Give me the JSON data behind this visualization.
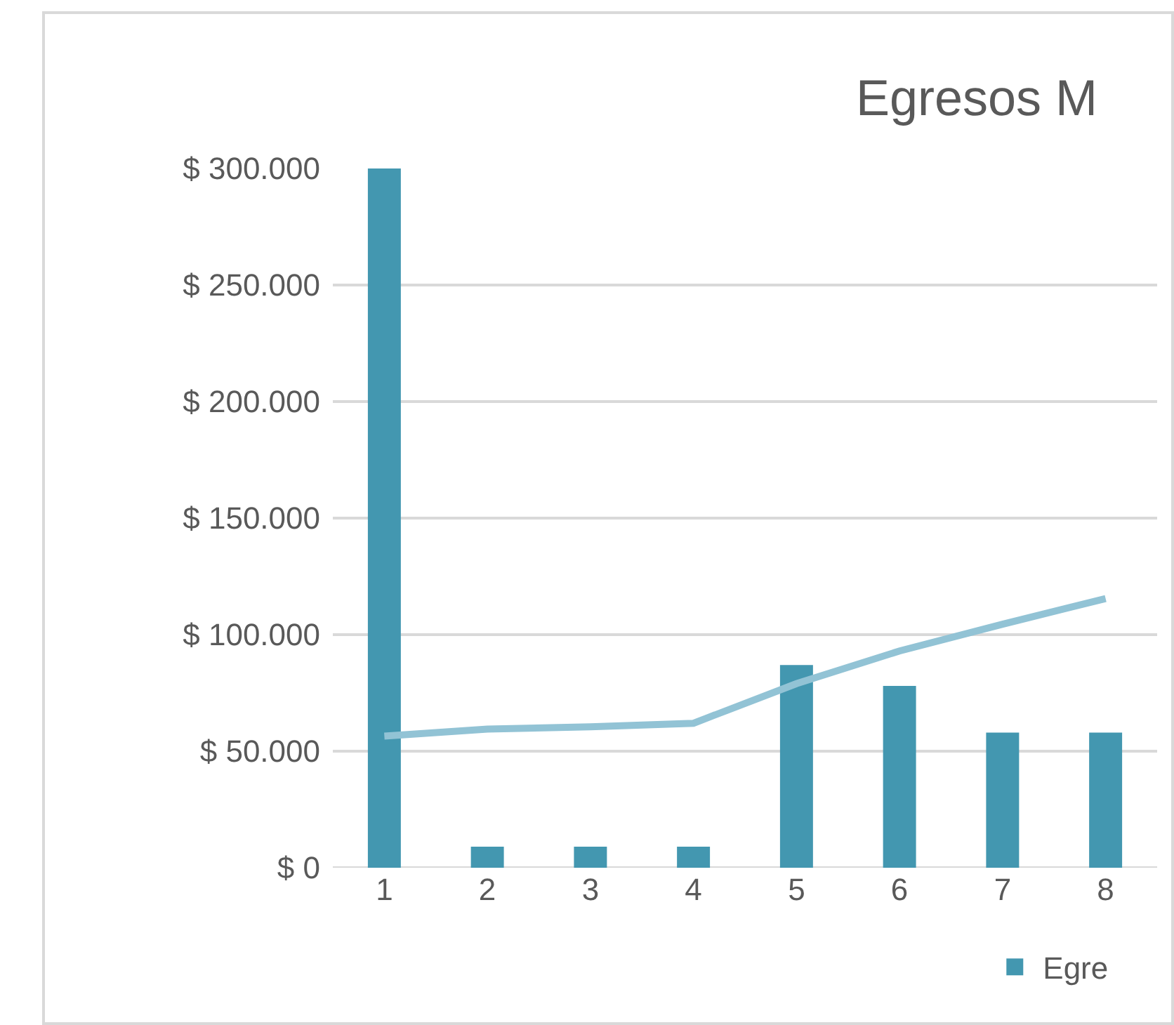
{
  "chart_data": {
    "type": "bar",
    "title": "Egresos M",
    "categories": [
      "1",
      "2",
      "3",
      "4",
      "5",
      "6",
      "7",
      "8"
    ],
    "series": [
      {
        "name": "Egre",
        "color": "#4397b0",
        "values": [
          300000,
          9000,
          9000,
          9000,
          87000,
          78000,
          58000,
          58000
        ]
      },
      {
        "type": "line",
        "color": "#92c3d5",
        "values": [
          56500,
          59500,
          60500,
          62000,
          79000,
          93000,
          104500,
          115500
        ]
      }
    ],
    "ylim": [
      0,
      300000
    ],
    "yticks": [
      {
        "value": 0,
        "label": "$ 0"
      },
      {
        "value": 50000,
        "label": "$ 50.000"
      },
      {
        "value": 100000,
        "label": "$ 100.000"
      },
      {
        "value": 150000,
        "label": "$ 150.000"
      },
      {
        "value": 200000,
        "label": "$ 200.000"
      },
      {
        "value": 250000,
        "label": "$ 250.000"
      },
      {
        "value": 300000,
        "label": "$ 300.000"
      }
    ],
    "grid": "y",
    "legend": "bottom",
    "marker": "none",
    "line_style": "solid"
  }
}
